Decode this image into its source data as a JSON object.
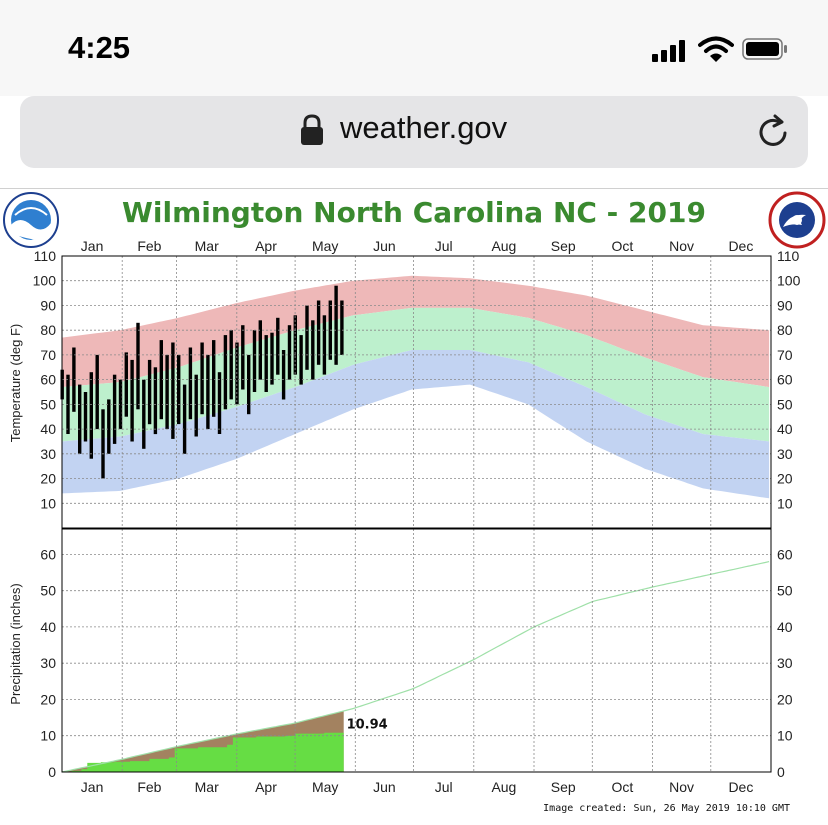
{
  "status_bar": {
    "time": "4:25"
  },
  "browser": {
    "url": "weather.gov"
  },
  "chart_data": {
    "type": "area",
    "title": "Wilmington North Carolina NC - 2019",
    "footer": "Image created: Sun, 26 May 2019 10:10 GMT",
    "months": [
      "Jan",
      "Feb",
      "Mar",
      "Apr",
      "May",
      "Jun",
      "Jul",
      "Aug",
      "Sep",
      "Oct",
      "Nov",
      "Dec"
    ],
    "temperature": {
      "ylabel": "Temperature (deg F)",
      "ylim": [
        0,
        110
      ],
      "yticks": [
        10,
        20,
        30,
        40,
        50,
        60,
        70,
        80,
        90,
        100,
        110
      ],
      "record_high": [
        {
          "day": 0,
          "v": 77
        },
        {
          "day": 30,
          "v": 80
        },
        {
          "day": 60,
          "v": 85
        },
        {
          "day": 90,
          "v": 91
        },
        {
          "day": 120,
          "v": 96
        },
        {
          "day": 150,
          "v": 100
        },
        {
          "day": 180,
          "v": 102
        },
        {
          "day": 210,
          "v": 101
        },
        {
          "day": 240,
          "v": 98
        },
        {
          "day": 270,
          "v": 94
        },
        {
          "day": 300,
          "v": 88
        },
        {
          "day": 330,
          "v": 82
        },
        {
          "day": 364,
          "v": 80
        }
      ],
      "normal_high": [
        {
          "day": 0,
          "v": 57
        },
        {
          "day": 30,
          "v": 59
        },
        {
          "day": 60,
          "v": 65
        },
        {
          "day": 90,
          "v": 73
        },
        {
          "day": 120,
          "v": 80
        },
        {
          "day": 150,
          "v": 86
        },
        {
          "day": 180,
          "v": 89
        },
        {
          "day": 210,
          "v": 89
        },
        {
          "day": 240,
          "v": 85
        },
        {
          "day": 270,
          "v": 78
        },
        {
          "day": 300,
          "v": 69
        },
        {
          "day": 330,
          "v": 61
        },
        {
          "day": 364,
          "v": 57
        }
      ],
      "normal_low": [
        {
          "day": 0,
          "v": 35
        },
        {
          "day": 30,
          "v": 37
        },
        {
          "day": 60,
          "v": 42
        },
        {
          "day": 90,
          "v": 49
        },
        {
          "day": 120,
          "v": 57
        },
        {
          "day": 150,
          "v": 66
        },
        {
          "day": 180,
          "v": 72
        },
        {
          "day": 210,
          "v": 72
        },
        {
          "day": 240,
          "v": 67
        },
        {
          "day": 270,
          "v": 57
        },
        {
          "day": 300,
          "v": 46
        },
        {
          "day": 330,
          "v": 38
        },
        {
          "day": 364,
          "v": 35
        }
      ],
      "record_low": [
        {
          "day": 0,
          "v": 14
        },
        {
          "day": 30,
          "v": 15
        },
        {
          "day": 60,
          "v": 20
        },
        {
          "day": 90,
          "v": 28
        },
        {
          "day": 120,
          "v": 38
        },
        {
          "day": 150,
          "v": 48
        },
        {
          "day": 180,
          "v": 56
        },
        {
          "day": 210,
          "v": 58
        },
        {
          "day": 240,
          "v": 50
        },
        {
          "day": 270,
          "v": 35
        },
        {
          "day": 300,
          "v": 24
        },
        {
          "day": 330,
          "v": 16
        },
        {
          "day": 364,
          "v": 12
        }
      ],
      "observed": [
        {
          "day": 0,
          "low": 52,
          "high": 64
        },
        {
          "day": 3,
          "low": 38,
          "high": 62
        },
        {
          "day": 6,
          "low": 47,
          "high": 73
        },
        {
          "day": 9,
          "low": 30,
          "high": 58
        },
        {
          "day": 12,
          "low": 35,
          "high": 55
        },
        {
          "day": 15,
          "low": 28,
          "high": 63
        },
        {
          "day": 18,
          "low": 40,
          "high": 70
        },
        {
          "day": 21,
          "low": 20,
          "high": 48
        },
        {
          "day": 24,
          "low": 30,
          "high": 52
        },
        {
          "day": 27,
          "low": 34,
          "high": 62
        },
        {
          "day": 30,
          "low": 40,
          "high": 60
        },
        {
          "day": 33,
          "low": 45,
          "high": 71
        },
        {
          "day": 36,
          "low": 35,
          "high": 68
        },
        {
          "day": 39,
          "low": 48,
          "high": 83
        },
        {
          "day": 42,
          "low": 32,
          "high": 60
        },
        {
          "day": 45,
          "low": 42,
          "high": 68
        },
        {
          "day": 48,
          "low": 38,
          "high": 65
        },
        {
          "day": 51,
          "low": 44,
          "high": 76
        },
        {
          "day": 54,
          "low": 40,
          "high": 70
        },
        {
          "day": 57,
          "low": 36,
          "high": 75
        },
        {
          "day": 60,
          "low": 42,
          "high": 70
        },
        {
          "day": 63,
          "low": 30,
          "high": 58
        },
        {
          "day": 66,
          "low": 44,
          "high": 73
        },
        {
          "day": 69,
          "low": 37,
          "high": 62
        },
        {
          "day": 72,
          "low": 46,
          "high": 75
        },
        {
          "day": 75,
          "low": 40,
          "high": 70
        },
        {
          "day": 78,
          "low": 45,
          "high": 76
        },
        {
          "day": 81,
          "low": 38,
          "high": 63
        },
        {
          "day": 84,
          "low": 48,
          "high": 78
        },
        {
          "day": 87,
          "low": 52,
          "high": 80
        },
        {
          "day": 90,
          "low": 50,
          "high": 75
        },
        {
          "day": 93,
          "low": 56,
          "high": 82
        },
        {
          "day": 96,
          "low": 46,
          "high": 70
        },
        {
          "day": 99,
          "low": 55,
          "high": 80
        },
        {
          "day": 102,
          "low": 60,
          "high": 84
        },
        {
          "day": 105,
          "low": 55,
          "high": 78
        },
        {
          "day": 108,
          "low": 58,
          "high": 79
        },
        {
          "day": 111,
          "low": 62,
          "high": 85
        },
        {
          "day": 114,
          "low": 52,
          "high": 72
        },
        {
          "day": 117,
          "low": 60,
          "high": 82
        },
        {
          "day": 120,
          "low": 62,
          "high": 86
        },
        {
          "day": 123,
          "low": 58,
          "high": 78
        },
        {
          "day": 126,
          "low": 64,
          "high": 90
        },
        {
          "day": 129,
          "low": 60,
          "high": 84
        },
        {
          "day": 132,
          "low": 66,
          "high": 92
        },
        {
          "day": 135,
          "low": 62,
          "high": 86
        },
        {
          "day": 138,
          "low": 68,
          "high": 92
        },
        {
          "day": 141,
          "low": 66,
          "high": 98
        },
        {
          "day": 144,
          "low": 70,
          "high": 92
        }
      ]
    },
    "precipitation": {
      "ylabel": "Precipitation (inches)",
      "ylim": [
        0,
        67
      ],
      "yticks": [
        0,
        10,
        20,
        30,
        40,
        50,
        60
      ],
      "normal_cumulative": [
        {
          "day": 0,
          "v": 0
        },
        {
          "day": 31,
          "v": 3.5
        },
        {
          "day": 59,
          "v": 7
        },
        {
          "day": 90,
          "v": 10.5
        },
        {
          "day": 120,
          "v": 13.5
        },
        {
          "day": 150,
          "v": 17.5
        },
        {
          "day": 181,
          "v": 23
        },
        {
          "day": 212,
          "v": 31
        },
        {
          "day": 243,
          "v": 40
        },
        {
          "day": 273,
          "v": 47
        },
        {
          "day": 304,
          "v": 51
        },
        {
          "day": 334,
          "v": 54.5
        },
        {
          "day": 364,
          "v": 58
        }
      ],
      "observed_cumulative": [
        {
          "day": 0,
          "v": 0
        },
        {
          "day": 5,
          "v": 0.3
        },
        {
          "day": 10,
          "v": 0.8
        },
        {
          "day": 13,
          "v": 2.5
        },
        {
          "day": 20,
          "v": 2.7
        },
        {
          "day": 27,
          "v": 2.8
        },
        {
          "day": 35,
          "v": 3.0
        },
        {
          "day": 45,
          "v": 3.6
        },
        {
          "day": 55,
          "v": 4.0
        },
        {
          "day": 58,
          "v": 6.5
        },
        {
          "day": 70,
          "v": 6.8
        },
        {
          "day": 85,
          "v": 7.5
        },
        {
          "day": 88,
          "v": 9.5
        },
        {
          "day": 100,
          "v": 9.8
        },
        {
          "day": 115,
          "v": 10.0
        },
        {
          "day": 120,
          "v": 10.6
        },
        {
          "day": 135,
          "v": 10.8
        },
        {
          "day": 145,
          "v": 10.94
        }
      ],
      "observed_label": "10.94",
      "observed_label_day": 146,
      "observed_label_value": 10.94
    },
    "colors": {
      "record_high": "#eeb8b8",
      "normal_band": "#bdf0cd",
      "record_low": "#c2d3f2",
      "observed": "#000000",
      "normal_precip_fill": "#a38260",
      "observed_precip_fill": "#66dd44",
      "normal_precip_line": "#9fe0a8",
      "title": "#3a8a2f"
    },
    "grid": true
  }
}
